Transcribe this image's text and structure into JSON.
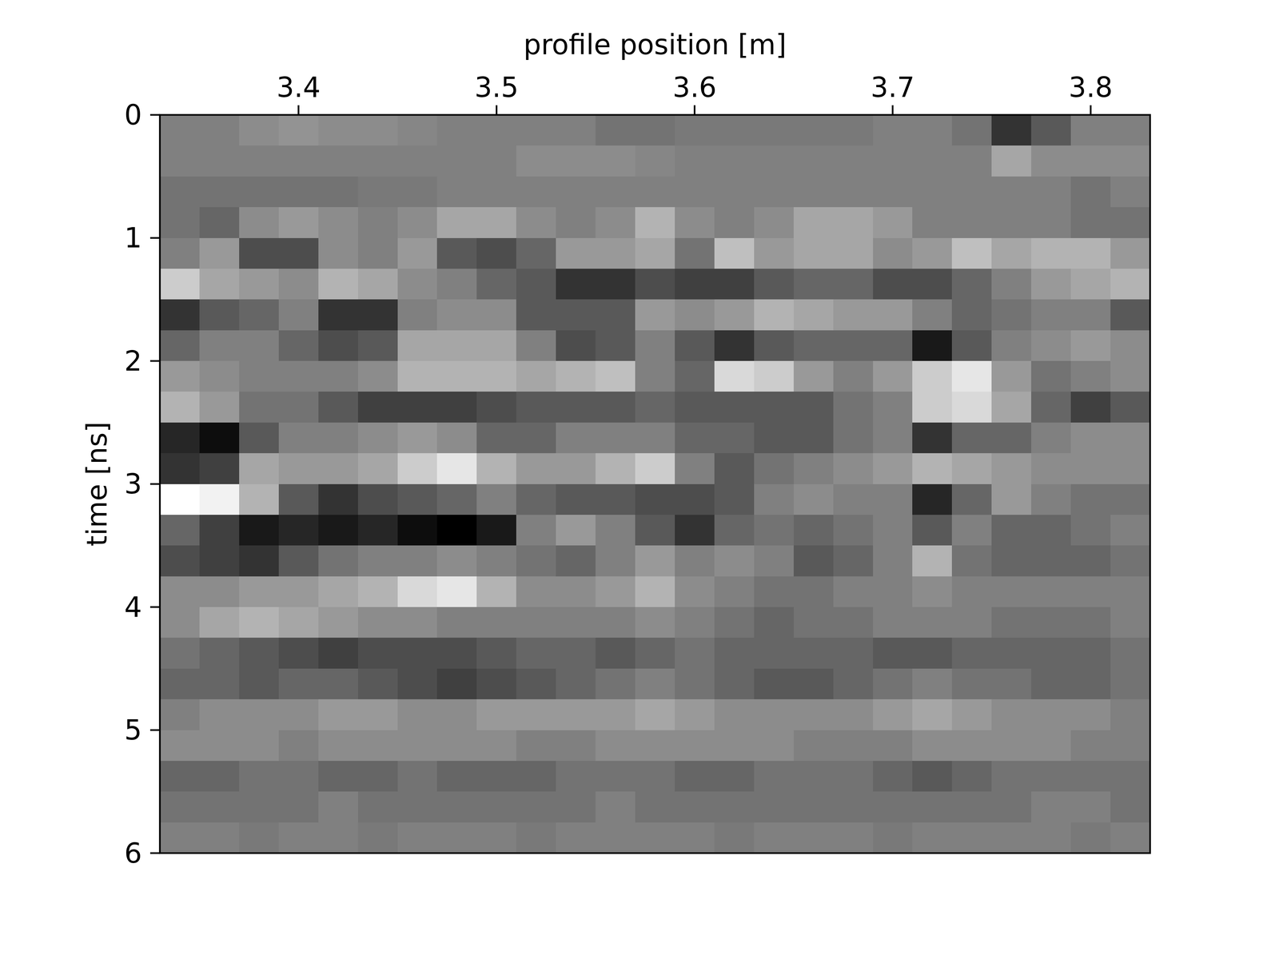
{
  "chart_data": {
    "type": "heatmap",
    "x_label": "profile position [m]",
    "y_label": "time [ns]",
    "color": "gray",
    "xlim": [
      3.33,
      3.83
    ],
    "ylim": [
      6,
      0
    ],
    "xticks": [
      3.4,
      3.5,
      3.6,
      3.7,
      3.8
    ],
    "yticks": [
      0,
      1,
      2,
      3,
      4,
      5,
      6
    ],
    "zlim": [
      -1,
      1
    ],
    "x_bins": [
      3.33,
      3.35,
      3.37,
      3.39,
      3.41,
      3.43,
      3.45,
      3.47,
      3.49,
      3.51,
      3.53,
      3.55,
      3.57,
      3.59,
      3.61,
      3.63,
      3.65,
      3.67,
      3.69,
      3.71,
      3.73,
      3.75,
      3.77,
      3.79,
      3.81,
      3.83
    ],
    "y_bins": [
      0,
      0.25,
      0.5,
      0.75,
      1,
      1.25,
      1.5,
      1.75,
      2,
      2.25,
      2.5,
      2.75,
      3,
      3.25,
      3.5,
      3.75,
      4,
      4.25,
      4.5,
      4.75,
      5,
      5.25,
      5.5,
      5.75,
      6
    ],
    "cells": [
      [
        0,
        0,
        0.1,
        0.15,
        0.1,
        0.1,
        0.05,
        0,
        0,
        0,
        0,
        -0.1,
        -0.1,
        -0.05,
        -0.05,
        -0.05,
        -0.05,
        -0.05,
        0,
        0,
        -0.1,
        -0.6,
        -0.3,
        0,
        0
      ],
      [
        0,
        0,
        0,
        0,
        0,
        0,
        0,
        0,
        0,
        0.1,
        0.1,
        0.1,
        0.05,
        0,
        0,
        0,
        0,
        0,
        0,
        0,
        0,
        0.3,
        0.1,
        0.1,
        0.1
      ],
      [
        -0.1,
        -0.1,
        -0.1,
        -0.1,
        -0.1,
        -0.05,
        -0.05,
        0,
        0,
        0,
        0,
        0,
        0,
        0,
        0,
        0,
        0,
        0,
        0,
        0,
        0,
        0,
        0,
        -0.1,
        0
      ],
      [
        -0.1,
        -0.2,
        0.1,
        0.2,
        0.1,
        0,
        0.1,
        0.3,
        0.3,
        0.1,
        0,
        0.1,
        0.4,
        0.1,
        0,
        0.1,
        0.3,
        0.3,
        0.2,
        0,
        0,
        0,
        0,
        -0.1,
        -0.1
      ],
      [
        0,
        0.2,
        -0.4,
        -0.4,
        0.1,
        0,
        0.2,
        -0.3,
        -0.4,
        -0.2,
        0.2,
        0.2,
        0.3,
        -0.1,
        0.5,
        0.2,
        0.3,
        0.3,
        0.1,
        0.2,
        0.5,
        0.3,
        0.4,
        0.4,
        0.2
      ],
      [
        0.6,
        0.3,
        0.2,
        0.1,
        0.4,
        0.3,
        0.1,
        0,
        -0.2,
        -0.3,
        -0.6,
        -0.6,
        -0.4,
        -0.5,
        -0.5,
        -0.3,
        -0.2,
        -0.2,
        -0.4,
        -0.4,
        -0.2,
        0,
        0.2,
        0.3,
        0.4
      ],
      [
        -0.6,
        -0.3,
        -0.2,
        0,
        -0.6,
        -0.6,
        0,
        0.1,
        0.1,
        -0.3,
        -0.3,
        -0.3,
        0.2,
        0.1,
        0.2,
        0.4,
        0.3,
        0.2,
        0.2,
        0,
        -0.2,
        -0.1,
        0,
        0,
        -0.3
      ],
      [
        -0.2,
        0,
        0,
        -0.2,
        -0.4,
        -0.3,
        0.3,
        0.3,
        0.3,
        0,
        -0.4,
        -0.3,
        0,
        -0.3,
        -0.6,
        -0.3,
        -0.2,
        -0.2,
        -0.2,
        -0.8,
        -0.3,
        0,
        0.1,
        0.2,
        0.1
      ],
      [
        0.2,
        0.1,
        0,
        0,
        0,
        0.1,
        0.4,
        0.4,
        0.4,
        0.3,
        0.4,
        0.5,
        0,
        -0.2,
        0.7,
        0.6,
        0.2,
        0,
        0.2,
        0.6,
        0.8,
        0.2,
        -0.1,
        0,
        0.1
      ],
      [
        0.4,
        0.2,
        -0.1,
        -0.1,
        -0.3,
        -0.5,
        -0.5,
        -0.5,
        -0.4,
        -0.3,
        -0.3,
        -0.3,
        -0.2,
        -0.3,
        -0.3,
        -0.3,
        -0.3,
        -0.1,
        0,
        0.6,
        0.7,
        0.3,
        -0.2,
        -0.5,
        -0.3
      ],
      [
        -0.7,
        -0.9,
        -0.3,
        0,
        0,
        0.1,
        0.2,
        0.1,
        -0.2,
        -0.2,
        0,
        0,
        0,
        -0.2,
        -0.2,
        -0.3,
        -0.3,
        -0.1,
        0,
        -0.6,
        -0.2,
        -0.2,
        0,
        0.1,
        0.1
      ],
      [
        -0.6,
        -0.5,
        0.3,
        0.2,
        0.2,
        0.3,
        0.6,
        0.8,
        0.4,
        0.2,
        0.2,
        0.4,
        0.6,
        0,
        -0.3,
        -0.1,
        0,
        0.1,
        0.2,
        0.4,
        0.3,
        0.2,
        0.1,
        0.1,
        0.1
      ],
      [
        1,
        0.9,
        0.4,
        -0.3,
        -0.6,
        -0.4,
        -0.3,
        -0.2,
        0,
        -0.2,
        -0.3,
        -0.3,
        -0.4,
        -0.4,
        -0.3,
        0,
        0.1,
        0,
        0,
        -0.7,
        -0.2,
        0.2,
        0,
        -0.1,
        -0.1
      ],
      [
        -0.2,
        -0.5,
        -0.8,
        -0.7,
        -0.8,
        -0.7,
        -0.9,
        -1,
        -0.8,
        0,
        0.2,
        0,
        -0.3,
        -0.6,
        -0.2,
        -0.1,
        -0.2,
        -0.1,
        0,
        -0.3,
        0,
        -0.2,
        -0.2,
        -0.1,
        0
      ],
      [
        -0.4,
        -0.5,
        -0.6,
        -0.3,
        -0.1,
        0,
        0,
        0.1,
        0,
        -0.1,
        -0.2,
        0,
        0.2,
        0,
        0.1,
        0,
        -0.3,
        -0.2,
        0,
        0.4,
        -0.1,
        -0.2,
        -0.2,
        -0.2,
        -0.1
      ],
      [
        0.1,
        0.1,
        0.2,
        0.2,
        0.3,
        0.4,
        0.7,
        0.8,
        0.4,
        0.1,
        0.1,
        0.2,
        0.4,
        0.1,
        0,
        -0.1,
        -0.1,
        0,
        0,
        0.1,
        0,
        0,
        0,
        0,
        0
      ],
      [
        0.1,
        0.3,
        0.4,
        0.3,
        0.2,
        0.1,
        0.1,
        0,
        0,
        0,
        0,
        0,
        0.1,
        0,
        -0.1,
        -0.2,
        -0.1,
        -0.1,
        0,
        0,
        0,
        -0.1,
        -0.1,
        -0.1,
        0
      ],
      [
        -0.1,
        -0.2,
        -0.3,
        -0.4,
        -0.5,
        -0.4,
        -0.4,
        -0.4,
        -0.3,
        -0.2,
        -0.2,
        -0.3,
        -0.2,
        -0.1,
        -0.2,
        -0.2,
        -0.2,
        -0.2,
        -0.3,
        -0.3,
        -0.2,
        -0.2,
        -0.2,
        -0.2,
        -0.1
      ],
      [
        -0.2,
        -0.2,
        -0.3,
        -0.2,
        -0.2,
        -0.3,
        -0.4,
        -0.5,
        -0.4,
        -0.3,
        -0.2,
        -0.1,
        0,
        -0.1,
        -0.2,
        -0.3,
        -0.3,
        -0.2,
        -0.1,
        0,
        -0.1,
        -0.1,
        -0.2,
        -0.2,
        -0.1
      ],
      [
        0,
        0.1,
        0.1,
        0.1,
        0.2,
        0.2,
        0.1,
        0.1,
        0.2,
        0.2,
        0.2,
        0.2,
        0.3,
        0.2,
        0.1,
        0.1,
        0.1,
        0.1,
        0.2,
        0.3,
        0.2,
        0.1,
        0.1,
        0.1,
        0
      ],
      [
        0.1,
        0.1,
        0.1,
        0,
        0.1,
        0.1,
        0.1,
        0.1,
        0.1,
        0,
        0,
        0.1,
        0.1,
        0.1,
        0.1,
        0.1,
        0,
        0,
        0,
        0.1,
        0.1,
        0.1,
        0.1,
        0,
        0
      ],
      [
        -0.2,
        -0.2,
        -0.1,
        -0.1,
        -0.2,
        -0.2,
        -0.1,
        -0.2,
        -0.2,
        -0.2,
        -0.1,
        -0.1,
        -0.1,
        -0.2,
        -0.2,
        -0.1,
        -0.1,
        -0.1,
        -0.2,
        -0.3,
        -0.2,
        -0.1,
        -0.1,
        -0.1,
        -0.1
      ],
      [
        -0.1,
        -0.1,
        -0.1,
        -0.1,
        0,
        -0.1,
        -0.1,
        -0.1,
        -0.1,
        -0.1,
        -0.1,
        0,
        -0.1,
        -0.1,
        -0.1,
        -0.1,
        -0.1,
        -0.1,
        -0.1,
        -0.1,
        -0.1,
        -0.1,
        0,
        0,
        -0.1
      ],
      [
        0,
        0,
        -0.05,
        0,
        0,
        -0.05,
        0,
        0,
        0,
        -0.05,
        0,
        0,
        0,
        0,
        -0.05,
        0,
        0,
        0,
        -0.05,
        0,
        0,
        0,
        0,
        -0.05,
        0
      ]
    ]
  }
}
